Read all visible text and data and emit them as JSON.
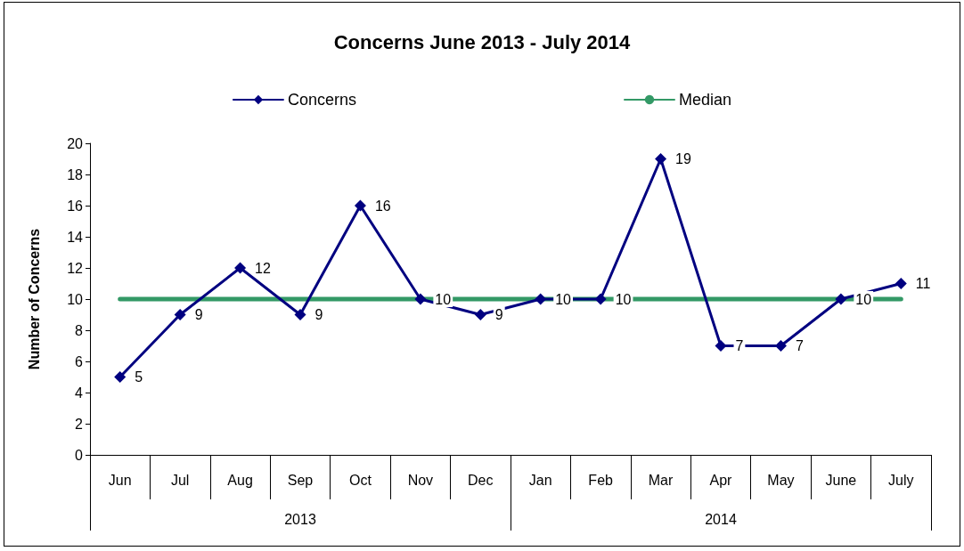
{
  "chart_data": {
    "type": "line",
    "title": "Concerns June 2013 - July 2014",
    "ylabel": "Number of Concerns",
    "categories": [
      "Jun",
      "Jul",
      "Aug",
      "Sep",
      "Oct",
      "Nov",
      "Dec",
      "Jan",
      "Feb",
      "Mar",
      "Apr",
      "May",
      "June",
      "July"
    ],
    "series": [
      {
        "name": "Concerns",
        "color": "#000080",
        "marker": "diamond",
        "values": [
          5,
          9,
          12,
          9,
          16,
          10,
          9,
          10,
          10,
          19,
          7,
          7,
          10,
          11
        ],
        "value_labels": [
          "5",
          "9",
          "12",
          "9",
          "16",
          "10",
          "9",
          "10",
          "10",
          "19",
          "7",
          "7",
          "10",
          "11"
        ]
      },
      {
        "name": "Median",
        "color": "#339966",
        "marker": "none",
        "values": [
          10,
          10,
          10,
          10,
          10,
          10,
          10,
          10,
          10,
          10,
          10,
          10,
          10,
          10
        ]
      }
    ],
    "annotations": [
      "2013",
      "2014"
    ],
    "ylim": [
      0,
      20
    ],
    "yticks": [
      0,
      2,
      4,
      6,
      8,
      10,
      12,
      14,
      16,
      18,
      20
    ],
    "grid": false,
    "legend": "top",
    "line_style": "solid"
  }
}
